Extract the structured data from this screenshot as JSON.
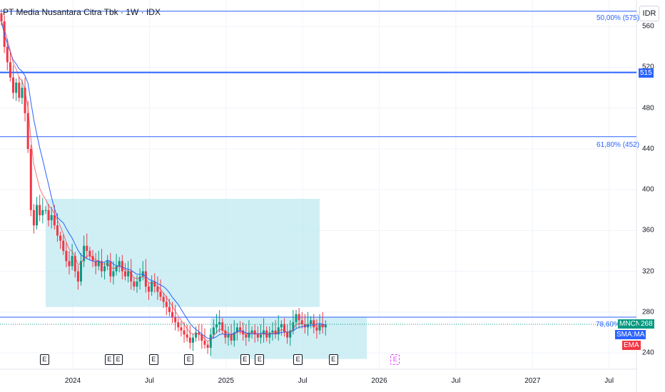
{
  "header": {
    "title": "PT Media Nusantara Citra Tbk · 1W · IDX",
    "currency": "IDR"
  },
  "yaxis": {
    "min": 224,
    "max": 586,
    "ticks": [
      {
        "label": "560",
        "v": 560
      },
      {
        "label": "520",
        "v": 520
      },
      {
        "label": "480",
        "v": 480
      },
      {
        "label": "440",
        "v": 440
      },
      {
        "label": "400",
        "v": 400
      },
      {
        "label": "360",
        "v": 360
      },
      {
        "label": "320",
        "v": 320
      },
      {
        "label": "280",
        "v": 280
      },
      {
        "label": "240",
        "v": 240
      }
    ]
  },
  "xaxis": {
    "labels": [
      {
        "label": "2024",
        "bar": 8
      },
      {
        "label": "Jul",
        "bar": 34
      },
      {
        "label": "2025",
        "bar": 60
      },
      {
        "label": "Jul",
        "bar": 86
      },
      {
        "label": "2026",
        "bar": 112
      },
      {
        "label": "Jul",
        "bar": 138
      },
      {
        "label": "2027",
        "bar": 164
      },
      {
        "label": "Jul",
        "bar": 190
      }
    ]
  },
  "fib_levels": [
    {
      "label": "50,00% (575)",
      "v": 575,
      "color": "#2962ff"
    },
    {
      "label": "515",
      "v": 515,
      "color": "#2962ff"
    },
    {
      "label": "61,80% (452)",
      "v": 452,
      "color": "#2962ff"
    },
    {
      "label": "78,60%",
      "v": 275,
      "color": "#2962ff"
    }
  ],
  "price_tags": {
    "symbol": "MNCN",
    "last": "268",
    "sma": "SMA:MA",
    "ema": "EMA",
    "up_color": "#089981",
    "down_color": "#f23645",
    "sma_color": "#2962ff"
  },
  "boxes": [
    {
      "from_bar": 15,
      "to_bar": 108,
      "top": 391,
      "bottom": 285,
      "color": "#bfeaf2"
    },
    {
      "from_bar": 71,
      "to_bar": 124,
      "top": 275,
      "bottom": 234,
      "color": "#bfeaf2"
    }
  ],
  "earnings": [
    {
      "label": "E",
      "bar": 7
    },
    {
      "label": "E",
      "bar": 29
    },
    {
      "label": "E",
      "bar": 32
    },
    {
      "label": "E",
      "bar": 44
    },
    {
      "label": "E",
      "bar": 56
    },
    {
      "label": "E",
      "bar": 75
    },
    {
      "label": "E",
      "bar": 80
    },
    {
      "label": "E",
      "bar": 93
    },
    {
      "label": "E",
      "bar": 105
    },
    {
      "label": "E",
      "bar": 126,
      "upcoming": true
    }
  ],
  "chart_data": {
    "type": "candlestick",
    "title": "PT Media Nusantara Citra Tbk · 1W · IDX",
    "ylim": [
      224,
      586
    ],
    "first_bar_x": 2,
    "bar_spacing": 4.13,
    "closes": [
      565,
      540,
      525,
      510,
      495,
      505,
      490,
      500,
      475,
      440,
      380,
      365,
      385,
      375,
      380,
      380,
      370,
      375,
      365,
      355,
      350,
      340,
      330,
      325,
      335,
      320,
      310,
      330,
      345,
      340,
      335,
      330,
      325,
      330,
      320,
      325,
      330,
      315,
      320,
      325,
      330,
      320,
      315,
      320,
      310,
      305,
      310,
      315,
      320,
      305,
      300,
      310,
      305,
      300,
      295,
      290,
      285,
      280,
      275,
      270,
      265,
      262,
      258,
      255,
      250,
      255,
      260,
      258,
      252,
      248,
      245,
      258,
      265,
      268,
      270,
      262,
      255,
      258,
      252,
      260,
      265,
      262,
      258,
      255,
      260,
      262,
      258,
      255,
      258,
      262,
      255,
      260,
      262,
      258,
      265,
      268,
      260,
      255,
      262,
      270,
      278,
      272,
      268,
      265,
      268,
      272,
      265,
      262,
      268,
      265,
      268
    ]
  }
}
